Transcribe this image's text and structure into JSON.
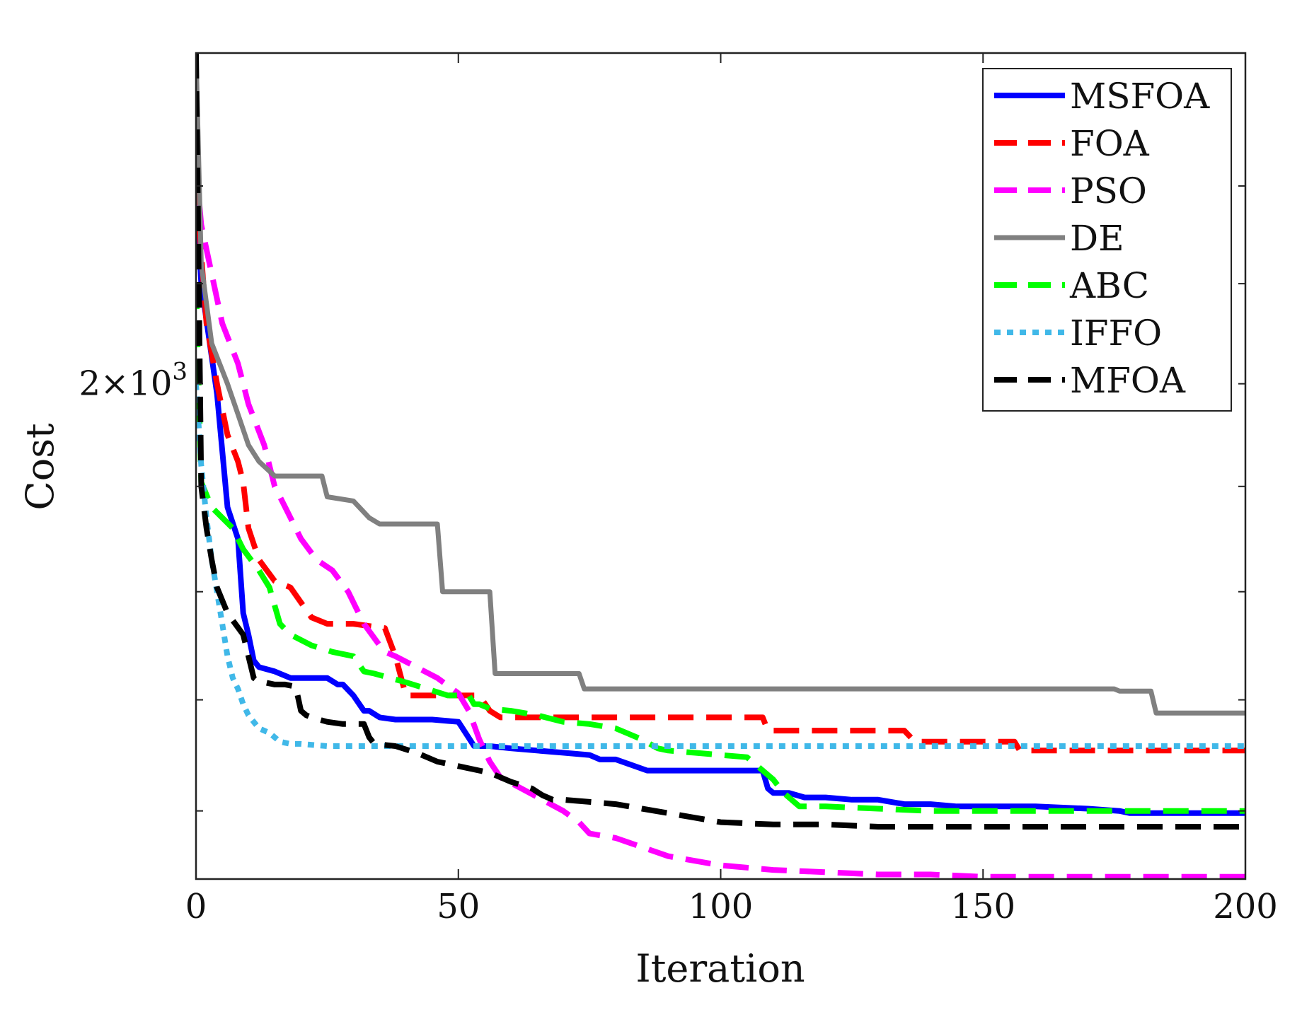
{
  "chart_data": {
    "type": "line",
    "title": "",
    "xlabel": "Iteration",
    "ylabel": "Cost",
    "xlim": [
      0,
      200
    ],
    "ylim": [
      1770,
      2170
    ],
    "y_scale": "log",
    "x_ticks": [
      0,
      50,
      100,
      150,
      200
    ],
    "x_tick_labels": [
      "0",
      "50",
      "100",
      "150",
      "200"
    ],
    "y_ticks": [
      2000
    ],
    "y_tick_labels": [
      "2×10",
      "3"
    ],
    "grid": false,
    "legend_position": "top-right",
    "series": [
      {
        "name": "MSFOA",
        "color": "#0000ff",
        "style": "solid",
        "x": [
          0,
          1,
          4,
          6,
          8,
          9,
          10,
          11,
          12,
          15,
          18,
          20,
          22,
          25,
          27,
          28,
          30,
          32,
          33,
          35,
          38,
          40,
          45,
          50,
          53,
          54,
          56,
          60,
          65,
          70,
          75,
          77,
          80,
          86,
          87,
          100,
          108,
          109,
          110,
          113,
          116,
          120,
          125,
          130,
          135,
          140,
          145,
          150,
          160,
          170,
          176,
          178,
          180,
          190,
          200
        ],
        "y": [
          2100,
          2050,
          1995,
          1940,
          1925,
          1890,
          1880,
          1868,
          1865,
          1863,
          1860,
          1860,
          1860,
          1860,
          1857,
          1857,
          1852,
          1845,
          1845,
          1842,
          1841,
          1841,
          1841,
          1840,
          1829,
          1829,
          1829,
          1828,
          1827,
          1826,
          1825,
          1823,
          1823,
          1818,
          1818,
          1818,
          1818,
          1810,
          1808,
          1808,
          1806,
          1806,
          1805,
          1805,
          1803,
          1803,
          1802,
          1802,
          1802,
          1801,
          1800,
          1799,
          1799,
          1799,
          1799
        ]
      },
      {
        "name": "FOA",
        "color": "#ff0000",
        "style": "dashed",
        "x": [
          0,
          2,
          4,
          6,
          8,
          9,
          10,
          12,
          15,
          18,
          22,
          25,
          30,
          36,
          38,
          40,
          45,
          50,
          54,
          56,
          58,
          60,
          70,
          80,
          90,
          100,
          108,
          109,
          115,
          125,
          135,
          137,
          140,
          150,
          156,
          157,
          160,
          170,
          180,
          190,
          200
        ],
        "y": [
          2100,
          2030,
          2000,
          1975,
          1962,
          1952,
          1930,
          1915,
          1905,
          1902,
          1888,
          1885,
          1885,
          1883,
          1870,
          1852,
          1852,
          1852,
          1852,
          1845,
          1842,
          1842,
          1842,
          1842,
          1842,
          1842,
          1842,
          1836,
          1836,
          1836,
          1836,
          1831,
          1831,
          1831,
          1831,
          1827,
          1827,
          1827,
          1827,
          1827,
          1827
        ]
      },
      {
        "name": "PSO",
        "color": "#ff00ff",
        "style": "dashed",
        "x": [
          0,
          1,
          5,
          8,
          10,
          13,
          15,
          17,
          20,
          23,
          26,
          29,
          32,
          35,
          36,
          38,
          42,
          46,
          50,
          52,
          54,
          56,
          58,
          62,
          66,
          70,
          73,
          75,
          80,
          85,
          90,
          100,
          110,
          120,
          130,
          140,
          150,
          160,
          170,
          180,
          190,
          200
        ],
        "y": [
          2110,
          2080,
          2030,
          2010,
          1990,
          1970,
          1950,
          1940,
          1925,
          1915,
          1910,
          1900,
          1885,
          1875,
          1872,
          1870,
          1865,
          1860,
          1853,
          1845,
          1832,
          1822,
          1815,
          1810,
          1805,
          1800,
          1795,
          1790,
          1788,
          1784,
          1780,
          1776,
          1774,
          1773,
          1772,
          1772,
          1771,
          1771,
          1771,
          1771,
          1771,
          1771
        ]
      },
      {
        "name": "DE",
        "color": "#808080",
        "style": "solid",
        "x": [
          0,
          1,
          3,
          6,
          8,
          10,
          12,
          15,
          24,
          25,
          30,
          33,
          35,
          40,
          46,
          47,
          50,
          53,
          56,
          57,
          60,
          65,
          73,
          74,
          80,
          100,
          120,
          140,
          160,
          175,
          176,
          182,
          183,
          190,
          200
        ],
        "y": [
          2170,
          2060,
          2020,
          2000,
          1985,
          1970,
          1962,
          1955,
          1955,
          1945,
          1943,
          1935,
          1932,
          1932,
          1932,
          1900,
          1900,
          1900,
          1900,
          1862,
          1862,
          1862,
          1862,
          1855,
          1855,
          1855,
          1855,
          1855,
          1855,
          1855,
          1854,
          1854,
          1844,
          1844,
          1844
        ]
      },
      {
        "name": "ABC",
        "color": "#00ff00",
        "style": "dashed",
        "x": [
          0,
          1,
          3,
          5,
          7,
          9,
          12,
          14,
          16,
          18,
          22,
          26,
          30,
          32,
          34,
          37,
          40,
          44,
          48,
          52,
          53,
          54,
          56,
          60,
          65,
          70,
          75,
          80,
          85,
          88,
          90,
          95,
          100,
          105,
          110,
          112,
          115,
          120,
          130,
          140,
          150,
          160,
          170,
          180,
          190,
          200
        ],
        "y": [
          2050,
          1952,
          1940,
          1935,
          1930,
          1920,
          1910,
          1902,
          1885,
          1880,
          1875,
          1872,
          1870,
          1863,
          1862,
          1860,
          1858,
          1855,
          1852,
          1852,
          1848,
          1848,
          1846,
          1845,
          1843,
          1840,
          1839,
          1837,
          1832,
          1828,
          1827,
          1826,
          1825,
          1824,
          1814,
          1808,
          1802,
          1802,
          1801,
          1800,
          1800,
          1800,
          1800,
          1800,
          1800,
          1800
        ]
      },
      {
        "name": "IFFO",
        "color": "#40b8e8",
        "style": "dotted",
        "x": [
          0,
          1,
          2,
          3,
          4,
          5,
          6,
          7,
          8,
          9,
          10,
          11,
          12,
          14,
          16,
          18,
          20,
          25,
          30,
          35,
          40,
          50,
          60,
          70,
          80,
          100,
          120,
          140,
          160,
          180,
          200
        ],
        "y": [
          2000,
          1960,
          1935,
          1915,
          1900,
          1885,
          1870,
          1860,
          1855,
          1848,
          1843,
          1840,
          1837,
          1835,
          1831,
          1830,
          1830,
          1829,
          1829,
          1829,
          1829,
          1829,
          1829,
          1829,
          1829,
          1829,
          1829,
          1829,
          1829,
          1829,
          1829
        ]
      },
      {
        "name": "MFOA",
        "color": "#000000",
        "style": "dashed",
        "x": [
          0,
          1,
          2,
          3,
          4,
          6,
          9,
          10,
          11,
          12,
          13,
          15,
          17,
          19,
          20,
          21,
          22,
          25,
          28,
          32,
          33,
          34,
          38,
          42,
          46,
          50,
          54,
          56,
          60,
          64,
          66,
          68,
          70,
          75,
          80,
          85,
          90,
          95,
          100,
          110,
          120,
          130,
          140,
          150,
          160,
          170,
          180,
          190,
          200
        ],
        "y": [
          2170,
          1950,
          1930,
          1915,
          1902,
          1890,
          1880,
          1870,
          1860,
          1858,
          1858,
          1857,
          1857,
          1856,
          1845,
          1843,
          1842,
          1840,
          1839,
          1839,
          1833,
          1830,
          1829,
          1826,
          1822,
          1820,
          1818,
          1817,
          1813,
          1810,
          1807,
          1805,
          1805,
          1804,
          1803,
          1801,
          1799,
          1797,
          1795,
          1794,
          1794,
          1793,
          1793,
          1793,
          1793,
          1793,
          1793,
          1793,
          1793
        ]
      }
    ]
  }
}
